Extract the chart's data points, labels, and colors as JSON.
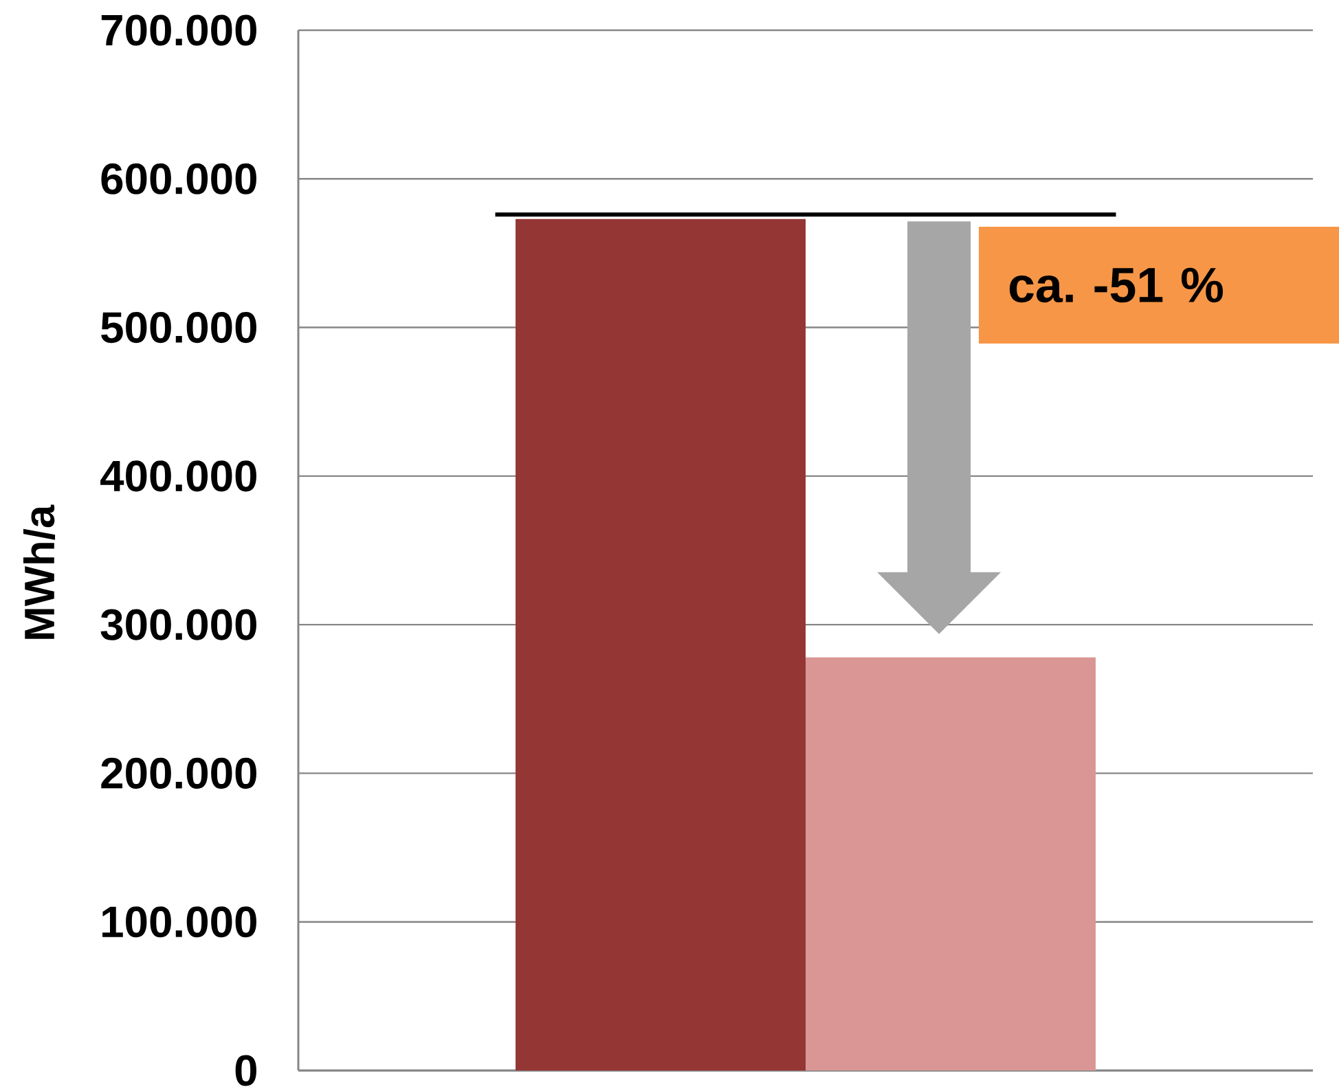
{
  "chart_data": {
    "type": "bar",
    "ylabel": "MWh/a",
    "categories": [
      null,
      null
    ],
    "values": [
      573000,
      278000
    ],
    "colors": [
      "#943634",
      "#d99694"
    ],
    "ylim": [
      0,
      700000
    ],
    "yticks": [
      0,
      {
        "value": 100000,
        "label": "100.000"
      },
      {
        "value": 200000,
        "label": "200.000"
      },
      {
        "value": 300000,
        "label": "300.000"
      },
      {
        "value": 400000,
        "label": "400.000"
      },
      {
        "value": 500000,
        "label": "500.000"
      },
      {
        "value": 600000,
        "label": "600.000"
      },
      {
        "value": 700000,
        "label": "700.000"
      }
    ],
    "grid": "y",
    "tick_labels": "y",
    "ref_lines": [
      {
        "axis": "y",
        "value": 576000,
        "color": "#000000"
      }
    ],
    "annotations": [
      "ca. -51 %"
    ]
  }
}
